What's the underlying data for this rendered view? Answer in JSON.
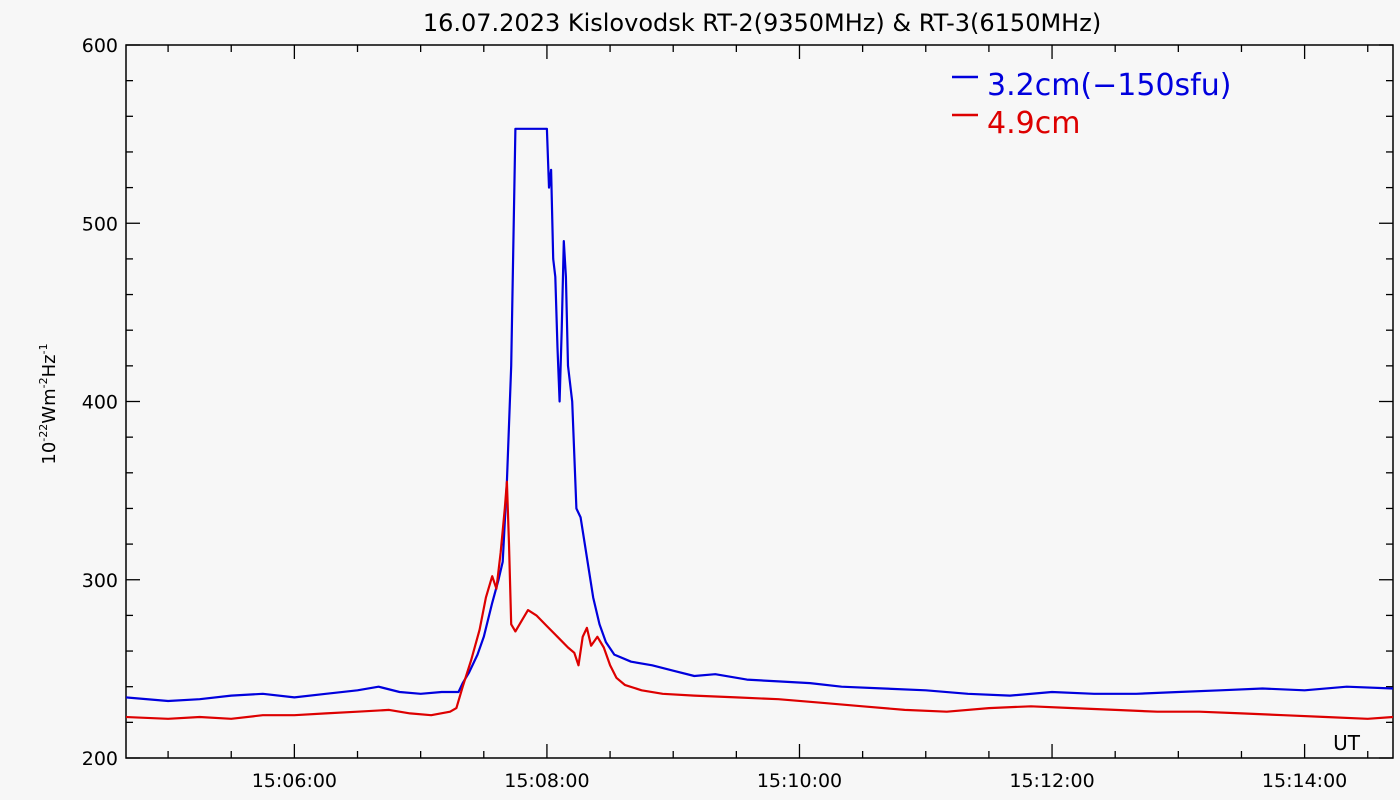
{
  "chart_data": {
    "type": "line",
    "title": "16.07.2023 Kislovodsk RT-2(9350MHz) & RT-3(6150MHz)",
    "ylabel_parts": [
      "10",
      "-22",
      "Wm",
      "-2",
      "Hz",
      "-1"
    ],
    "corner_label": "UT",
    "xlabel": "UT",
    "xlim": [
      "15:04:40",
      "15:14:42"
    ],
    "ylim": [
      200,
      600
    ],
    "y_ticks": [
      200,
      300,
      400,
      500,
      600
    ],
    "x_ticks": [
      "15:06:00",
      "15:08:00",
      "15:10:00",
      "15:12:00",
      "15:14:00"
    ],
    "legend_position": "top-right",
    "grid": false,
    "series": [
      {
        "name": "3.2cm(−150sfu)",
        "color": "#0000dd",
        "points": [
          [
            "15:04:40",
            234
          ],
          [
            "15:05:00",
            232
          ],
          [
            "15:05:15",
            233
          ],
          [
            "15:05:30",
            235
          ],
          [
            "15:05:45",
            236
          ],
          [
            "15:06:00",
            234
          ],
          [
            "15:06:15",
            236
          ],
          [
            "15:06:30",
            238
          ],
          [
            "15:06:40",
            240
          ],
          [
            "15:06:50",
            237
          ],
          [
            "15:07:00",
            236
          ],
          [
            "15:07:10",
            237
          ],
          [
            "15:07:18",
            237
          ],
          [
            "15:07:20",
            242
          ],
          [
            "15:07:23",
            248
          ],
          [
            "15:07:27",
            258
          ],
          [
            "15:07:30",
            268
          ],
          [
            "15:07:34",
            287
          ],
          [
            "15:07:37",
            300
          ],
          [
            "15:07:39",
            310
          ],
          [
            "15:07:41",
            355
          ],
          [
            "15:07:43",
            420
          ],
          [
            "15:07:45",
            553
          ],
          [
            "15:07:50",
            553
          ],
          [
            "15:07:55",
            553
          ],
          [
            "15:07:59",
            553
          ],
          [
            "15:08:00",
            553
          ],
          [
            "15:08:01",
            520
          ],
          [
            "15:08:02",
            530
          ],
          [
            "15:08:03",
            480
          ],
          [
            "15:08:04",
            470
          ],
          [
            "15:08:05",
            430
          ],
          [
            "15:08:06",
            400
          ],
          [
            "15:08:07",
            440
          ],
          [
            "15:08:08",
            490
          ],
          [
            "15:08:09",
            470
          ],
          [
            "15:08:10",
            420
          ],
          [
            "15:08:12",
            400
          ],
          [
            "15:08:14",
            340
          ],
          [
            "15:08:16",
            335
          ],
          [
            "15:08:18",
            320
          ],
          [
            "15:08:20",
            305
          ],
          [
            "15:08:22",
            290
          ],
          [
            "15:08:25",
            275
          ],
          [
            "15:08:28",
            265
          ],
          [
            "15:08:32",
            258
          ],
          [
            "15:08:40",
            254
          ],
          [
            "15:08:50",
            252
          ],
          [
            "15:09:00",
            249
          ],
          [
            "15:09:10",
            246
          ],
          [
            "15:09:20",
            247
          ],
          [
            "15:09:35",
            244
          ],
          [
            "15:09:50",
            243
          ],
          [
            "15:10:05",
            242
          ],
          [
            "15:10:20",
            240
          ],
          [
            "15:10:40",
            239
          ],
          [
            "15:11:00",
            238
          ],
          [
            "15:11:20",
            236
          ],
          [
            "15:11:40",
            235
          ],
          [
            "15:12:00",
            237
          ],
          [
            "15:12:20",
            236
          ],
          [
            "15:12:40",
            236
          ],
          [
            "15:13:00",
            237
          ],
          [
            "15:13:20",
            238
          ],
          [
            "15:13:40",
            239
          ],
          [
            "15:14:00",
            238
          ],
          [
            "15:14:20",
            240
          ],
          [
            "15:14:42",
            239
          ]
        ]
      },
      {
        "name": "4.9cm",
        "color": "#dd0000",
        "points": [
          [
            "15:04:40",
            223
          ],
          [
            "15:05:00",
            222
          ],
          [
            "15:05:15",
            223
          ],
          [
            "15:05:30",
            222
          ],
          [
            "15:05:45",
            224
          ],
          [
            "15:06:00",
            224
          ],
          [
            "15:06:15",
            225
          ],
          [
            "15:06:30",
            226
          ],
          [
            "15:06:45",
            227
          ],
          [
            "15:06:55",
            225
          ],
          [
            "15:07:05",
            224
          ],
          [
            "15:07:14",
            226
          ],
          [
            "15:07:17",
            228
          ],
          [
            "15:07:20",
            240
          ],
          [
            "15:07:24",
            255
          ],
          [
            "15:07:28",
            272
          ],
          [
            "15:07:31",
            290
          ],
          [
            "15:07:34",
            302
          ],
          [
            "15:07:36",
            295
          ],
          [
            "15:07:38",
            315
          ],
          [
            "15:07:40",
            340
          ],
          [
            "15:07:41",
            355
          ],
          [
            "15:07:42",
            320
          ],
          [
            "15:07:43",
            275
          ],
          [
            "15:07:45",
            271
          ],
          [
            "15:07:48",
            277
          ],
          [
            "15:07:51",
            283
          ],
          [
            "15:07:55",
            280
          ],
          [
            "15:08:00",
            274
          ],
          [
            "15:08:05",
            268
          ],
          [
            "15:08:10",
            262
          ],
          [
            "15:08:13",
            259
          ],
          [
            "15:08:15",
            252
          ],
          [
            "15:08:17",
            268
          ],
          [
            "15:08:19",
            273
          ],
          [
            "15:08:21",
            263
          ],
          [
            "15:08:24",
            268
          ],
          [
            "15:08:27",
            262
          ],
          [
            "15:08:30",
            252
          ],
          [
            "15:08:33",
            245
          ],
          [
            "15:08:37",
            241
          ],
          [
            "15:08:45",
            238
          ],
          [
            "15:08:55",
            236
          ],
          [
            "15:09:10",
            235
          ],
          [
            "15:09:30",
            234
          ],
          [
            "15:09:50",
            233
          ],
          [
            "15:10:10",
            231
          ],
          [
            "15:10:30",
            229
          ],
          [
            "15:10:50",
            227
          ],
          [
            "15:11:10",
            226
          ],
          [
            "15:11:30",
            228
          ],
          [
            "15:11:50",
            229
          ],
          [
            "15:12:10",
            228
          ],
          [
            "15:12:30",
            227
          ],
          [
            "15:12:50",
            226
          ],
          [
            "15:13:10",
            226
          ],
          [
            "15:13:30",
            225
          ],
          [
            "15:13:50",
            224
          ],
          [
            "15:14:10",
            223
          ],
          [
            "15:14:30",
            222
          ],
          [
            "15:14:42",
            223
          ]
        ]
      }
    ]
  }
}
